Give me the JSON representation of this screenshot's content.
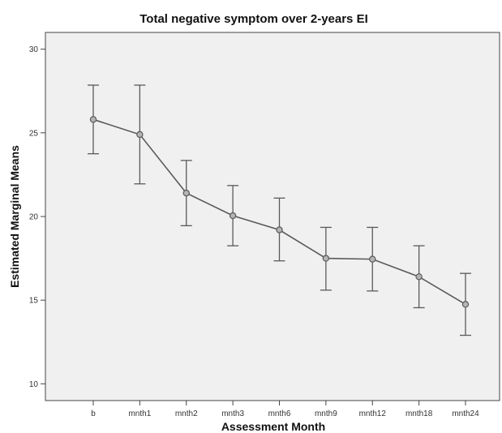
{
  "chart_data": {
    "type": "line",
    "title": "Total negative symptom over 2-years EI",
    "xlabel": "Assessment Month",
    "ylabel": "Estimated Marginal Means",
    "categories": [
      "b",
      "mnth1",
      "mnth2",
      "mnth3",
      "mnth6",
      "mnth9",
      "mnth12",
      "mnth18",
      "mnth24"
    ],
    "series": [
      {
        "values": [
          25.8,
          24.9,
          21.4,
          20.05,
          19.2,
          17.5,
          17.45,
          16.4,
          14.75
        ],
        "error_lower": [
          23.75,
          21.95,
          19.45,
          18.25,
          17.35,
          15.6,
          15.55,
          14.55,
          12.9
        ],
        "error_upper": [
          27.85,
          27.85,
          23.35,
          21.85,
          21.1,
          19.35,
          19.35,
          18.25,
          16.6
        ]
      }
    ],
    "ylim": [
      9,
      31
    ],
    "yticks": [
      10,
      15,
      20,
      25,
      30
    ],
    "grid": false,
    "legend": "none",
    "colors": {
      "plot_background": "#f0f0f0",
      "line": "#5a5a5a",
      "marker_fill": "#b4b4b4",
      "errorbar": "#5a5a5a",
      "frame": "#444444"
    }
  }
}
